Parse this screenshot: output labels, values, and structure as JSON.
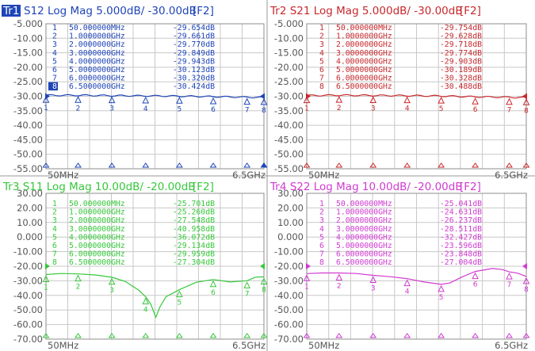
{
  "colors": {
    "tr1": "#1f45b8",
    "tr2": "#c8282c",
    "tr3": "#35c83a",
    "tr4": "#d23ad2",
    "grid": "#c8c8c8",
    "tick_text": "#555555"
  },
  "traces": [
    {
      "id": "tr1",
      "badge": "Tr1",
      "title": "S12 Log Mag 5.000dB/ -30.00dB",
      "channel": "[F2]",
      "yticks": [
        "-5.000",
        "-10.00",
        "-15.00",
        "-20.00",
        "-25.00",
        "-30.00",
        "-35.00",
        "-40.00",
        "-45.00",
        "-50.00",
        "-55.00"
      ],
      "ylim": [
        -55,
        -5
      ],
      "ref_level": -30,
      "start_label": "50MHz",
      "stop_label": "6.5GHz",
      "markers": [
        {
          "num": "1",
          "freq": "50.000000MHz",
          "value": "-29.654dB",
          "x": 0.05,
          "y": -29.654
        },
        {
          "num": "2",
          "freq": "1.0000000GHz",
          "value": "-29.661dB",
          "x": 1.0,
          "y": -29.661
        },
        {
          "num": "3",
          "freq": "2.0000000GHz",
          "value": "-29.770dB",
          "x": 2.0,
          "y": -29.77
        },
        {
          "num": "4",
          "freq": "3.0000000GHz",
          "value": "-29.849dB",
          "x": 3.0,
          "y": -29.849
        },
        {
          "num": "5",
          "freq": "4.0000000GHz",
          "value": "-29.943dB",
          "x": 4.0,
          "y": -29.943
        },
        {
          "num": "6",
          "freq": "5.0000000GHz",
          "value": "-30.123dB",
          "x": 5.0,
          "y": -30.123
        },
        {
          "num": "7",
          "freq": "6.0000000GHz",
          "value": "-30.320dB",
          "x": 6.0,
          "y": -30.32
        },
        {
          "num": "8",
          "freq": "6.5000000GHz",
          "value": "-30.424dB",
          "x": 6.5,
          "y": -30.424
        }
      ]
    },
    {
      "id": "tr2",
      "badge": "Tr2",
      "title": "S21 Log Mag 5.000dB/ -30.00dB",
      "channel": "[F2]",
      "yticks": [
        "-5.000",
        "-10.00",
        "-15.00",
        "-20.00",
        "-25.00",
        "-30.00",
        "-35.00",
        "-40.00",
        "-45.00",
        "-50.00",
        "-55.00"
      ],
      "ylim": [
        -55,
        -5
      ],
      "ref_level": -30,
      "start_label": "50MHz",
      "stop_label": "6.5GHz",
      "markers": [
        {
          "num": "1",
          "freq": "50.000000MHz",
          "value": "-29.754dB",
          "x": 0.05,
          "y": -29.754
        },
        {
          "num": "2",
          "freq": "1.0000000GHz",
          "value": "-29.628dB",
          "x": 1.0,
          "y": -29.628
        },
        {
          "num": "3",
          "freq": "2.0000000GHz",
          "value": "-29.718dB",
          "x": 2.0,
          "y": -29.718
        },
        {
          "num": "4",
          "freq": "3.0000000GHz",
          "value": "-29.774dB",
          "x": 3.0,
          "y": -29.774
        },
        {
          "num": "5",
          "freq": "4.0000000GHz",
          "value": "-29.903dB",
          "x": 4.0,
          "y": -29.903
        },
        {
          "num": "6",
          "freq": "5.0000000GHz",
          "value": "-30.189dB",
          "x": 5.0,
          "y": -30.189
        },
        {
          "num": "7",
          "freq": "6.0000000GHz",
          "value": "-30.328dB",
          "x": 6.0,
          "y": -30.328
        },
        {
          "num": "8",
          "freq": "6.5000000GHz",
          "value": "-30.488dB",
          "x": 6.5,
          "y": -30.488
        }
      ]
    },
    {
      "id": "tr3",
      "badge": "Tr3",
      "title": "S11 Log Mag 10.00dB/ -20.00dB",
      "channel": "[F2]",
      "yticks": [
        "30.00",
        "20.00",
        "10.00",
        "0.000",
        "-10.00",
        "-20.00",
        "-30.00",
        "-40.00",
        "-50.00",
        "-60.00",
        "-70.00"
      ],
      "ylim": [
        -70,
        30
      ],
      "ref_level": -20,
      "start_label": "50MHz",
      "stop_label": "6.5GHz",
      "markers": [
        {
          "num": "1",
          "freq": "50.000000MHz",
          "value": "-25.701dB",
          "x": 0.05,
          "y": -25.701
        },
        {
          "num": "2",
          "freq": "1.0000000GHz",
          "value": "-25.260dB",
          "x": 1.0,
          "y": -25.26
        },
        {
          "num": "3",
          "freq": "2.0000000GHz",
          "value": "-27.548dB",
          "x": 2.0,
          "y": -27.548
        },
        {
          "num": "4",
          "freq": "3.0000000GHz",
          "value": "-40.958dB",
          "x": 3.0,
          "y": -40.958
        },
        {
          "num": "5",
          "freq": "4.0000000GHz",
          "value": "-36.072dB",
          "x": 4.0,
          "y": -36.072
        },
        {
          "num": "6",
          "freq": "5.0000000GHz",
          "value": "-29.134dB",
          "x": 5.0,
          "y": -29.134
        },
        {
          "num": "7",
          "freq": "6.0000000GHz",
          "value": "-29.959dB",
          "x": 6.0,
          "y": -29.959
        },
        {
          "num": "8",
          "freq": "6.5000000GHz",
          "value": "-27.304dB",
          "x": 6.5,
          "y": -27.304
        }
      ]
    },
    {
      "id": "tr4",
      "badge": "Tr4",
      "title": "S22 Log Mag 10.00dB/ -20.00dB",
      "channel": "[F2]",
      "yticks": [
        "30.00",
        "20.00",
        "10.00",
        "0.000",
        "-10.00",
        "-20.00",
        "-30.00",
        "-40.00",
        "-50.00",
        "-60.00",
        "-70.00"
      ],
      "ylim": [
        -70,
        30
      ],
      "ref_level": -20,
      "start_label": "50MHz",
      "stop_label": "6.5GHz",
      "markers": [
        {
          "num": "1",
          "freq": "50.000000MHz",
          "value": "-25.041dB",
          "x": 0.05,
          "y": -25.041
        },
        {
          "num": "2",
          "freq": "1.0000000GHz",
          "value": "-24.631dB",
          "x": 1.0,
          "y": -24.631
        },
        {
          "num": "3",
          "freq": "2.0000000GHz",
          "value": "-26.237dB",
          "x": 2.0,
          "y": -26.237
        },
        {
          "num": "4",
          "freq": "3.0000000GHz",
          "value": "-28.511dB",
          "x": 3.0,
          "y": -28.511
        },
        {
          "num": "5",
          "freq": "4.0000000GHz",
          "value": "-32.427dB",
          "x": 4.0,
          "y": -32.427
        },
        {
          "num": "6",
          "freq": "5.0000000GHz",
          "value": "-23.596dB",
          "x": 5.0,
          "y": -23.596
        },
        {
          "num": "7",
          "freq": "6.0000000GHz",
          "value": "-23.848dB",
          "x": 6.0,
          "y": -23.848
        },
        {
          "num": "8",
          "freq": "6.5000000GHz",
          "value": "-27.004dB",
          "x": 6.5,
          "y": -27.004
        }
      ]
    }
  ],
  "chart_data": [
    {
      "type": "line",
      "title": "S12 Log Mag 5.000dB/ -30.00dB",
      "xlim": [
        0.05,
        6.5
      ],
      "ylim": [
        -55,
        -5
      ],
      "grid": true,
      "x": [
        0.05,
        1.0,
        2.0,
        3.0,
        4.0,
        5.0,
        6.0,
        6.5
      ],
      "series": [
        {
          "name": "S12",
          "values": [
            -29.654,
            -29.661,
            -29.77,
            -29.849,
            -29.943,
            -30.123,
            -30.32,
            -30.424
          ]
        }
      ]
    },
    {
      "type": "line",
      "title": "S21 Log Mag 5.000dB/ -30.00dB",
      "xlim": [
        0.05,
        6.5
      ],
      "ylim": [
        -55,
        -5
      ],
      "grid": true,
      "x": [
        0.05,
        1.0,
        2.0,
        3.0,
        4.0,
        5.0,
        6.0,
        6.5
      ],
      "series": [
        {
          "name": "S21",
          "values": [
            -29.754,
            -29.628,
            -29.718,
            -29.774,
            -29.903,
            -30.189,
            -30.328,
            -30.488
          ]
        }
      ]
    },
    {
      "type": "line",
      "title": "S11 Log Mag 10.00dB/ -20.00dB",
      "xlim": [
        0.05,
        6.5
      ],
      "ylim": [
        -70,
        30
      ],
      "grid": true,
      "x": [
        0.05,
        1.0,
        2.0,
        3.0,
        3.3,
        3.5,
        4.0,
        5.0,
        6.0,
        6.5
      ],
      "series": [
        {
          "name": "S11",
          "values": [
            -25.701,
            -25.26,
            -27.548,
            -40.958,
            -52,
            -44,
            -36.072,
            -29.134,
            -29.959,
            -27.304
          ]
        }
      ]
    },
    {
      "type": "line",
      "title": "S22 Log Mag 10.00dB/ -20.00dB",
      "xlim": [
        0.05,
        6.5
      ],
      "ylim": [
        -70,
        30
      ],
      "grid": true,
      "x": [
        0.05,
        1.0,
        2.0,
        3.0,
        4.0,
        5.0,
        5.5,
        6.0,
        6.5
      ],
      "series": [
        {
          "name": "S22",
          "values": [
            -25.041,
            -24.631,
            -26.237,
            -28.511,
            -32.427,
            -23.596,
            -21.5,
            -23.848,
            -27.004
          ]
        }
      ]
    }
  ]
}
